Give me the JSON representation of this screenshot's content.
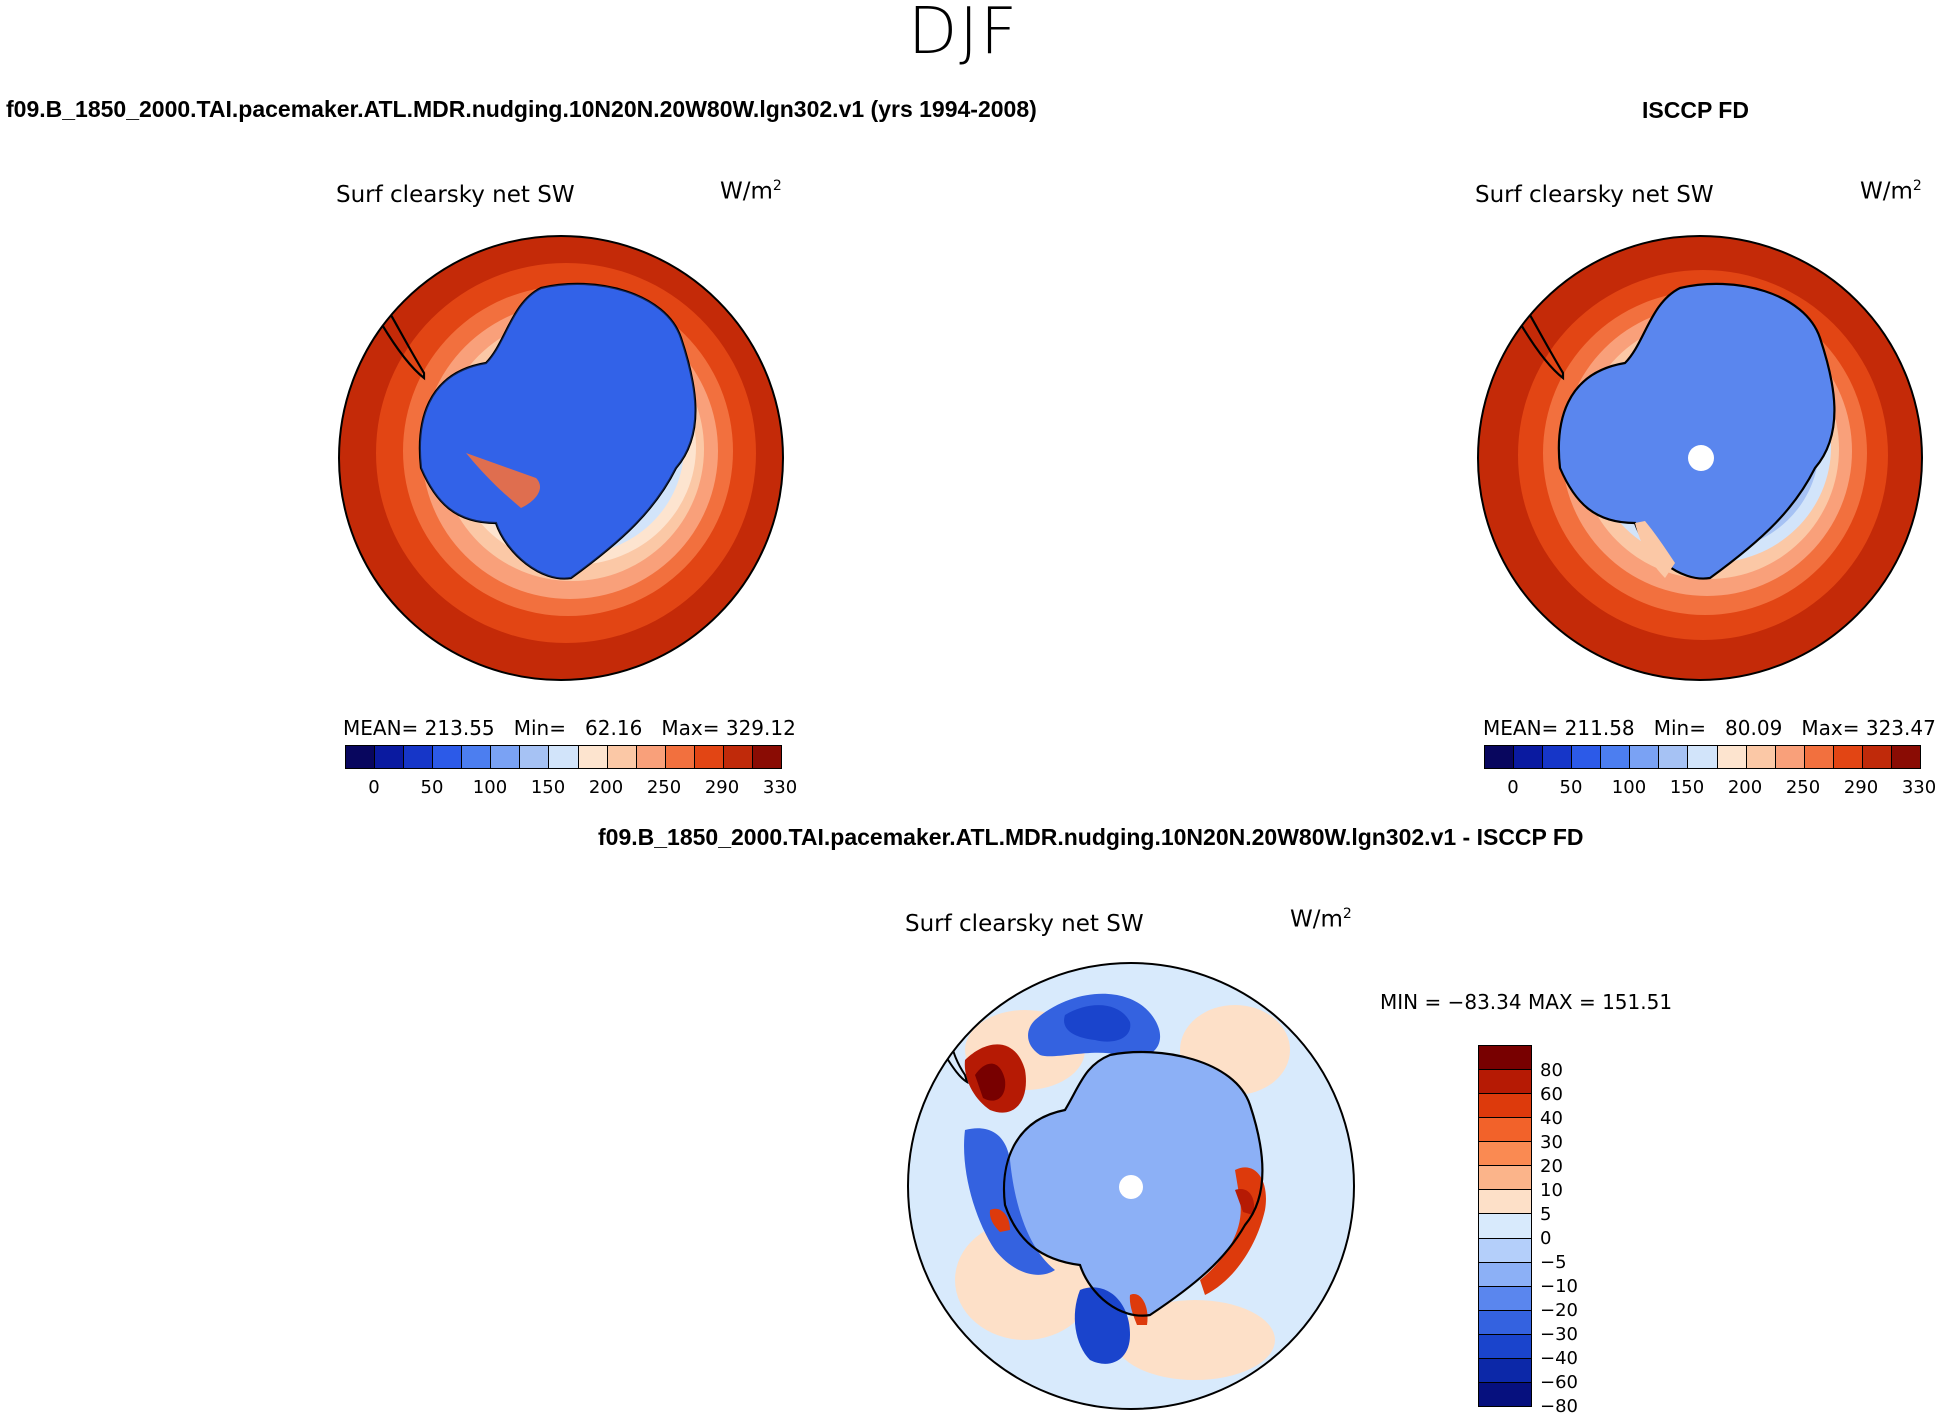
{
  "season": "DJF",
  "model_case_title": "f09.B_1850_2000.TAI.pacemaker.ATL.MDR.nudging.10N20N.20W80W.lgn302.v1 (yrs 1994-2008)",
  "obs_title": "ISCCP FD",
  "diff_title": "f09.B_1850_2000.TAI.pacemaker.ATL.MDR.nudging.10N20N.20W80W.lgn302.v1 - ISCCP FD",
  "variable_label": "Surf clearsky net SW",
  "units_base": "W/m",
  "units_exp": "2",
  "colors": {
    "abs_levels": [
      "#08065e",
      "#0a1aa0",
      "#1636c8",
      "#2c5ae8",
      "#4c7ef0",
      "#7aa2f4",
      "#a6c2f4",
      "#d2e4fa",
      "#fde4cf",
      "#fbc8a6",
      "#f9a07a",
      "#f2703e",
      "#e24514",
      "#c02a0a",
      "#8a0c04"
    ],
    "diff_levels": [
      "#780000",
      "#b61a04",
      "#dd3a0c",
      "#f2622a",
      "#fa8a52",
      "#fbb48a",
      "#fde0c8",
      "#d8eafc",
      "#b4cffa",
      "#8cb0f6",
      "#5a86ee",
      "#3462e0",
      "#1a44cc",
      "#0c28a8",
      "#06107e"
    ],
    "ocean_warm": "#c42a08",
    "land_blue": "#2f5ee6"
  },
  "model_panel": {
    "stats_mean_label": "MEAN=",
    "stats_mean": "213.55",
    "stats_min_label": "Min=",
    "stats_min": "62.16",
    "stats_max_label": "Max=",
    "stats_max": "329.12"
  },
  "obs_panel": {
    "stats_mean_label": "MEAN=",
    "stats_mean": "211.58",
    "stats_min_label": "Min=",
    "stats_min": "80.09",
    "stats_max_label": "Max=",
    "stats_max": "323.47"
  },
  "diff_panel": {
    "minmax": "MIN = −83.34 MAX = 151.51"
  },
  "chart_data": [
    {
      "type": "heatmap",
      "title": "f09.B_1850_2000.TAI.pacemaker.ATL.MDR.nudging.10N20N.20W80W.lgn302.v1 (yrs 1994-2008)",
      "variable": "Surf clearsky net SW",
      "units": "W/m2",
      "projection": "south polar stereographic",
      "colorbar_ticks": [
        "0",
        "50",
        "100",
        "150",
        "200",
        "250",
        "290",
        "330"
      ],
      "mean": 213.55,
      "min": 62.16,
      "max": 329.12
    },
    {
      "type": "heatmap",
      "title": "ISCCP FD",
      "variable": "Surf clearsky net SW",
      "units": "W/m2",
      "projection": "south polar stereographic",
      "colorbar_ticks": [
        "0",
        "50",
        "100",
        "150",
        "200",
        "250",
        "290",
        "330"
      ],
      "mean": 211.58,
      "min": 80.09,
      "max": 323.47
    },
    {
      "type": "heatmap",
      "title": "f09.B_1850_2000.TAI.pacemaker.ATL.MDR.nudging.10N20N.20W80W.lgn302.v1 - ISCCP FD",
      "variable": "Surf clearsky net SW",
      "units": "W/m2",
      "projection": "south polar stereographic",
      "colorbar_ticks": [
        "80",
        "60",
        "40",
        "30",
        "20",
        "10",
        "5",
        "0",
        "−5",
        "−10",
        "−20",
        "−30",
        "−40",
        "−60",
        "−80"
      ],
      "min": -83.34,
      "max": 151.51
    }
  ]
}
